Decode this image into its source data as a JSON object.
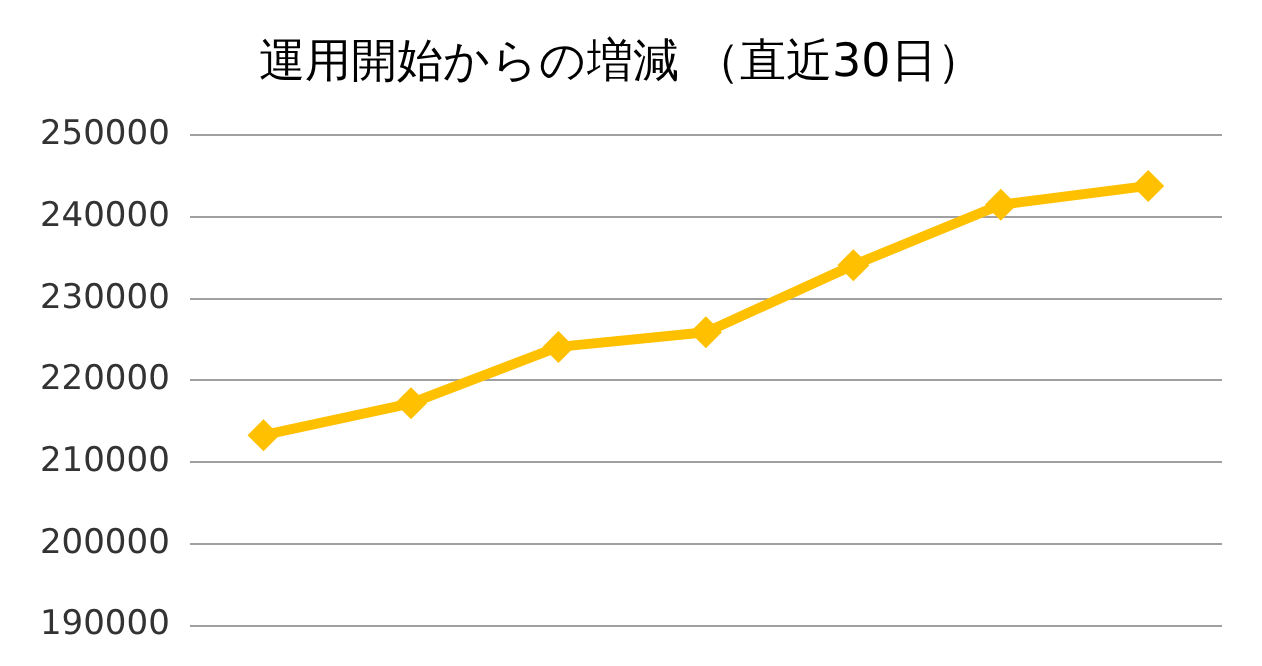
{
  "chart_data": {
    "type": "line",
    "title": "運用開始からの増減 （直近30日）",
    "categories": [
      null,
      null,
      null,
      null,
      null,
      null,
      null
    ],
    "series": [
      {
        "color": "#ffc000",
        "values": [
          213300,
          217200,
          224100,
          225900,
          234100,
          241500,
          243800
        ]
      }
    ],
    "ylim": [
      190000,
      250000
    ],
    "yticks": [
      190000,
      200000,
      210000,
      220000,
      230000,
      240000,
      250000
    ],
    "grid": "y",
    "legend": false,
    "marker": "diamond",
    "line_style": "solid",
    "tick_labels": "y"
  }
}
